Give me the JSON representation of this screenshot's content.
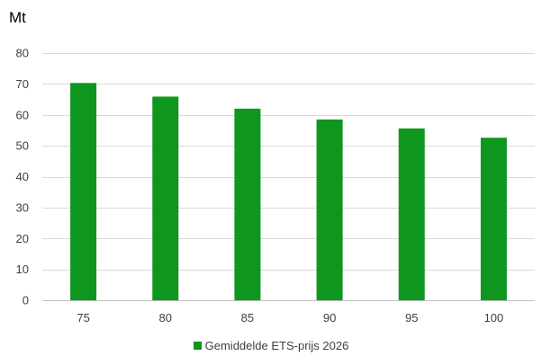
{
  "chart_data": {
    "type": "bar",
    "unit_label": "Mt",
    "categories": [
      "75",
      "80",
      "85",
      "90",
      "95",
      "100"
    ],
    "series": [
      {
        "name": "Gemiddelde ETS-prijs 2026",
        "values": [
          70.3,
          65.9,
          62.0,
          58.5,
          55.6,
          52.6
        ],
        "color": "#0f961f"
      }
    ],
    "ylim": [
      0,
      80
    ],
    "yticks": [
      0,
      10,
      20,
      30,
      40,
      50,
      60,
      70,
      80
    ],
    "grid": true,
    "legend": "bottom-center"
  }
}
